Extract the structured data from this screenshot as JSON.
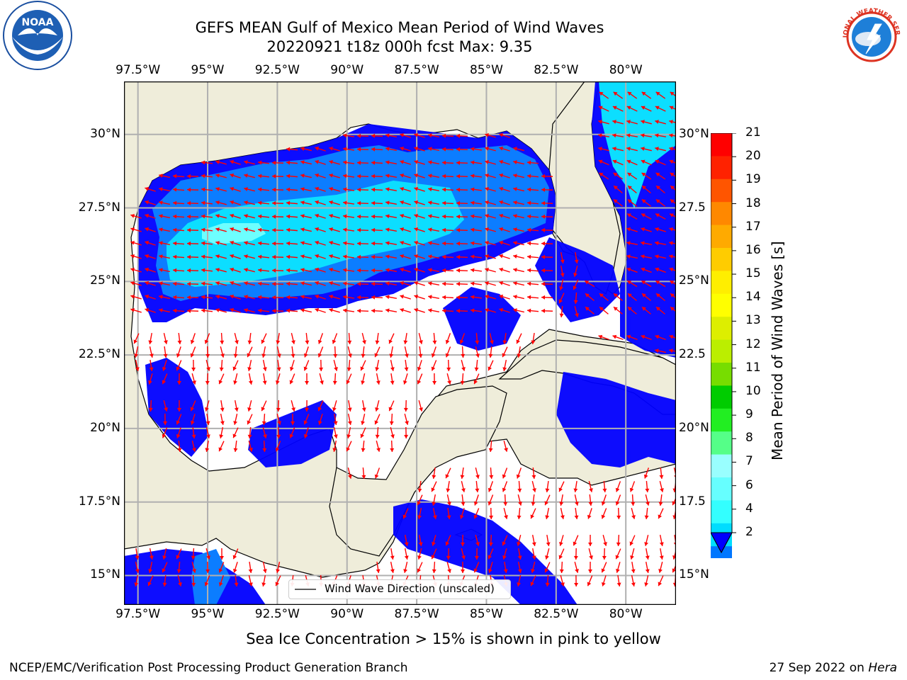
{
  "header": {
    "title_line1": "GEFS MEAN Gulf of Mexico Mean Period of Wind Waves",
    "title_line2": "20220921 t18z 000h fcst   Max: 9.35"
  },
  "logos": {
    "noaa": {
      "text": "NOAA",
      "icon": "noaa-logo"
    },
    "nws": {
      "text": "NATIONAL WEATHER SERVICE",
      "icon": "nws-logo"
    }
  },
  "chart_data": {
    "type": "heatmap",
    "title": "GEFS MEAN Gulf of Mexico Mean Period of Wind Waves",
    "subtitle": "20220921 t18z 000h fcst   Max: 9.35",
    "max_value": 9.35,
    "x_ticks": [
      "97.5°W",
      "95°W",
      "92.5°W",
      "90°W",
      "87.5°W",
      "85°W",
      "82.5°W",
      "80°W"
    ],
    "x_tick_values": [
      -97.5,
      -95,
      -92.5,
      -90,
      -87.5,
      -85,
      -82.5,
      -80
    ],
    "y_ticks_left": [
      "30°N",
      "27.5°N",
      "25°N",
      "22.5°N",
      "20°N",
      "17.5°N",
      "15°N"
    ],
    "y_ticks_right": [
      "30°N",
      "27.5",
      "25°N",
      "22.5",
      "20°N",
      "17.5",
      "15°N"
    ],
    "y_tick_values": [
      30,
      27.5,
      25,
      22.5,
      20,
      17.5,
      15
    ],
    "xlim": [
      -98,
      -78.2
    ],
    "ylim": [
      14,
      31.8
    ],
    "grid": true,
    "legend": {
      "label": "Wind Wave Direction (unscaled)",
      "placement": "bottom-center"
    },
    "colorbar": {
      "label": "Mean Period of Wind Waves [s]",
      "ticks": [
        2,
        4,
        6,
        7,
        8,
        9,
        10,
        11,
        12,
        13,
        14,
        15,
        16,
        17,
        18,
        19,
        20,
        21
      ],
      "extend": "min",
      "colors": [
        "#0077ff",
        "#00ddff",
        "#33ffff",
        "#66ffff",
        "#99ffff",
        "#55ff88",
        "#22ee22",
        "#00cc00",
        "#77dd00",
        "#bbee00",
        "#ddee00",
        "#ffff00",
        "#ffee00",
        "#ffcc00",
        "#ffaa00",
        "#ff8800",
        "#ff5500",
        "#ff2200",
        "#ff0000"
      ],
      "under_color": "#0000ff"
    },
    "colors": {
      "land": "#efedda",
      "arrow": "#ff0000",
      "no_data": "#ffffff",
      "grid": "#b0b0b0"
    }
  },
  "footer": {
    "note": "Sea Ice Concentration > 15% is shown in pink to yellow",
    "left": "NCEP/EMC/Verification Post Processing Product Generation Branch",
    "right_date": "27 Sep 2022 on ",
    "right_host": "Hera"
  }
}
